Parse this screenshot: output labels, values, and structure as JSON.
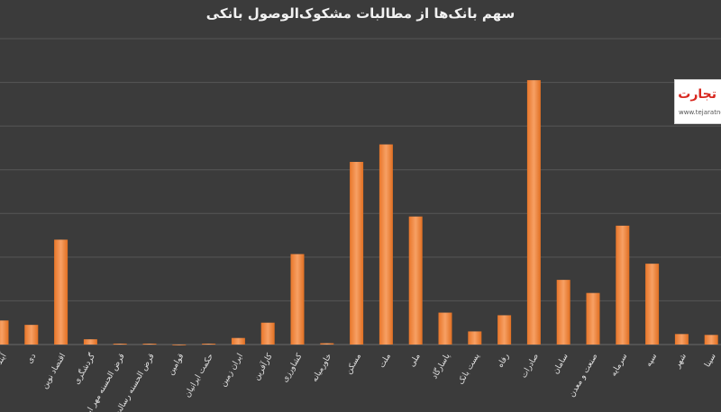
{
  "chart_data": {
    "type": "bar",
    "title": "سهم بانک‌ها از مطالبات مشکوک‌الوصول بانکی",
    "xlabel": "",
    "ylabel": "",
    "ylim": [
      0,
      700
    ],
    "grid": true,
    "categories": [
      "آینده",
      "دی",
      "اقتصاد نوین",
      "گردشگری",
      "قرض الحسنه مهر ایران",
      "قرض الحسنه رسالت",
      "قوامین",
      "حکمت ایرانیان",
      "ایران زمین",
      "کارآفرین",
      "کشاورزی",
      "خاورمیانه",
      "مسکن",
      "ملت",
      "ملی",
      "پاسارگاد",
      "پست بانک",
      "رفاه",
      "صادرات",
      "سامان",
      "صنعت و معدن",
      "سرمایه",
      "سپه",
      "شهر",
      "سینا"
    ],
    "values": [
      55,
      45,
      240,
      12,
      2,
      2,
      0,
      2,
      15,
      50,
      207,
      3,
      418,
      458,
      293,
      73,
      30,
      67,
      605,
      148,
      118,
      272,
      185,
      24,
      22
    ],
    "color": "#f28a3c"
  },
  "logo": {
    "text": "تجارت نیوز",
    "url": "www.tejaratnews.com"
  }
}
